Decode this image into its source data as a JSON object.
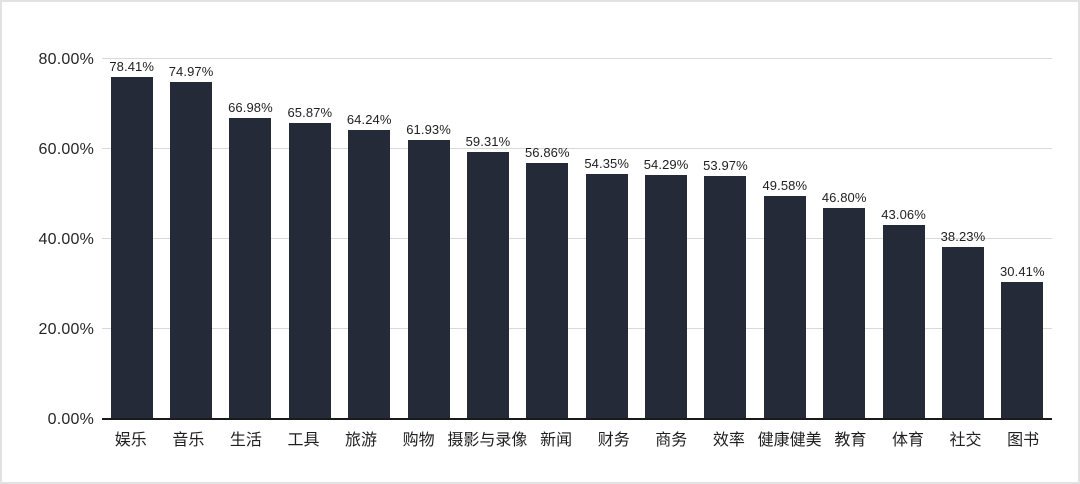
{
  "chart_data": {
    "type": "bar",
    "title": "",
    "xlabel": "",
    "ylabel": "",
    "categories": [
      "娱乐",
      "音乐",
      "生活",
      "工具",
      "旅游",
      "购物",
      "摄影与录像",
      "新闻",
      "财务",
      "商务",
      "效率",
      "健康健美",
      "教育",
      "体育",
      "社交",
      "图书"
    ],
    "values": [
      78.41,
      74.97,
      66.98,
      65.87,
      64.24,
      61.93,
      59.31,
      56.86,
      54.35,
      54.29,
      53.97,
      49.58,
      46.8,
      43.06,
      38.23,
      30.41
    ],
    "value_labels": [
      "78.41%",
      "74.97%",
      "66.98%",
      "65.87%",
      "64.24%",
      "61.93%",
      "59.31%",
      "56.86%",
      "54.35%",
      "54.29%",
      "53.97%",
      "49.58%",
      "46.80%",
      "43.06%",
      "38.23%",
      "30.41%"
    ],
    "ylim": [
      0,
      80
    ],
    "ytick_values": [
      0,
      20,
      40,
      60,
      80
    ],
    "ytick_labels": [
      "0.00%",
      "20.00%",
      "40.00%",
      "60.00%",
      "80.00%"
    ],
    "grid": "horizontal",
    "legend": "none",
    "colors": {
      "bar": "#242a38",
      "gridline": "#d9d9d9",
      "axis_line": "#1a1a1a",
      "text": "#1f1f1f",
      "background": "#ffffff",
      "frame_border": "#e2e2e2"
    }
  }
}
